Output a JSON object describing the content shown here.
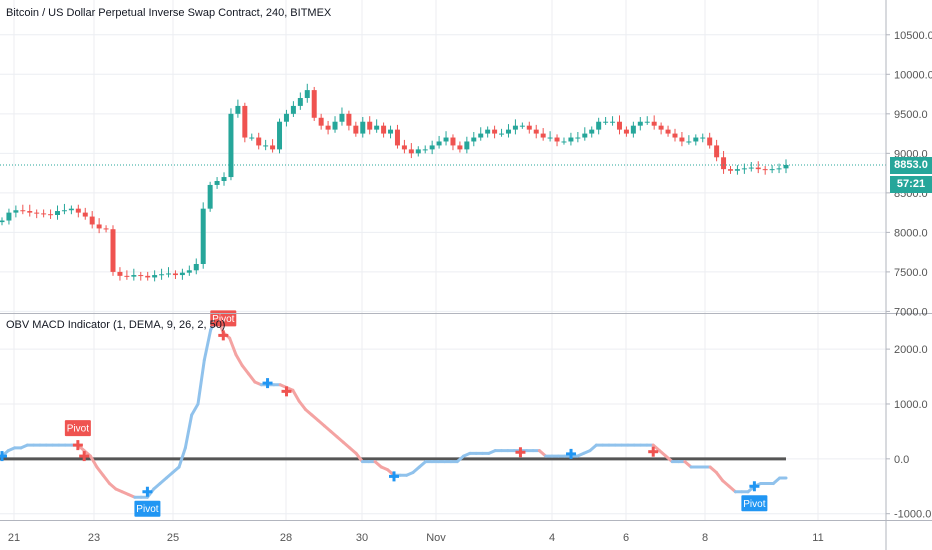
{
  "header": {
    "symbol_title": "Bitcoin / US Dollar Perpetual Inverse Swap Contract, 240, BITMEX",
    "indicator_title": "OBV MACD Indicator (1, DEMA, 9, 26, 2, 50)"
  },
  "price_badges": {
    "last_price": "8853.0",
    "countdown": "57:21",
    "color": "#26a69a"
  },
  "colors": {
    "up": "#26a69a",
    "down": "#ef5350",
    "obv_up": "#90c2ec",
    "obv_down": "#f4a3a2",
    "pivot_up": "#2196f3",
    "pivot_down": "#ef5350",
    "zero_line": "#555555"
  },
  "chart_data": [
    {
      "type": "candlestick",
      "title": "Bitcoin / US Dollar Perpetual Inverse Swap Contract, 240, BITMEX",
      "x_ticks": [
        "21",
        "23",
        "25",
        "28",
        "30",
        "Nov",
        "4",
        "6",
        "8",
        "11"
      ],
      "y_ticks": [
        "10500.0",
        "10000.0",
        "9500.0",
        "9000.0",
        "8500.0",
        "8000.0",
        "7500.0",
        "7000.0"
      ],
      "ylim": [
        6980,
        10940
      ],
      "last_price": 8853.0,
      "series": [
        {
          "name": "BTC",
          "close": [
            8150,
            8250,
            8280,
            8270,
            8250,
            8240,
            8230,
            8220,
            8270,
            8280,
            8300,
            8250,
            8200,
            8100,
            8050,
            8040,
            7500,
            7450,
            7440,
            7460,
            7450,
            7430,
            7460,
            7470,
            7480,
            7460,
            7490,
            7520,
            7600,
            8300,
            8600,
            8650,
            8700,
            9500,
            9600,
            9200,
            9200,
            9100,
            9100,
            9050,
            9400,
            9500,
            9600,
            9700,
            9800,
            9450,
            9350,
            9300,
            9400,
            9500,
            9350,
            9250,
            9400,
            9300,
            9350,
            9250,
            9300,
            9100,
            9050,
            9000,
            9050,
            9050,
            9100,
            9150,
            9200,
            9100,
            9050,
            9150,
            9200,
            9250,
            9300,
            9250,
            9250,
            9300,
            9350,
            9350,
            9300,
            9250,
            9200,
            9200,
            9150,
            9150,
            9200,
            9200,
            9250,
            9300,
            9400,
            9400,
            9400,
            9300,
            9250,
            9350,
            9400,
            9400,
            9350,
            9300,
            9250,
            9200,
            9150,
            9150,
            9200,
            9200,
            9100,
            8950,
            8800,
            8780,
            8800,
            8810,
            8820,
            8800,
            8790,
            8800,
            8810,
            8853
          ]
        }
      ]
    },
    {
      "type": "line",
      "title": "OBV MACD Indicator (1, DEMA, 9, 26, 2, 50)",
      "y_ticks": [
        "2000.0",
        "1000.0",
        "0.0",
        "-1000.0"
      ],
      "ylim": [
        -1115,
        2640
      ],
      "series": [
        {
          "name": "OBV MACD",
          "points": [
            [
              0,
              50
            ],
            [
              1,
              150
            ],
            [
              2,
              200
            ],
            [
              3,
              200
            ],
            [
              4,
              250
            ],
            [
              5,
              250
            ],
            [
              6,
              250
            ],
            [
              7,
              250
            ],
            [
              8,
              250
            ],
            [
              9,
              250
            ],
            [
              10,
              250
            ],
            [
              11,
              250
            ],
            [
              12,
              250
            ],
            [
              13,
              150
            ],
            [
              14,
              50
            ],
            [
              15,
              -150
            ],
            [
              16,
              -300
            ],
            [
              17,
              -450
            ],
            [
              18,
              -550
            ],
            [
              19,
              -600
            ],
            [
              20,
              -650
            ],
            [
              21,
              -700
            ],
            [
              22,
              -700
            ],
            [
              23,
              -700
            ],
            [
              24,
              -550
            ],
            [
              25,
              -450
            ],
            [
              26,
              -350
            ],
            [
              27,
              -250
            ],
            [
              28,
              -150
            ],
            [
              29,
              200
            ],
            [
              30,
              800
            ],
            [
              31,
              1000
            ],
            [
              32,
              1800
            ],
            [
              33,
              2350
            ],
            [
              34,
              2600
            ],
            [
              35,
              2300
            ],
            [
              36,
              2200
            ],
            [
              37,
              1900
            ],
            [
              38,
              1700
            ],
            [
              39,
              1550
            ],
            [
              40,
              1400
            ],
            [
              41,
              1350
            ],
            [
              42,
              1350
            ],
            [
              43,
              1350
            ],
            [
              44,
              1350
            ],
            [
              45,
              1300
            ],
            [
              46,
              1250
            ],
            [
              47,
              1050
            ],
            [
              48,
              900
            ],
            [
              49,
              800
            ],
            [
              50,
              700
            ],
            [
              51,
              600
            ],
            [
              52,
              500
            ],
            [
              53,
              400
            ],
            [
              54,
              300
            ],
            [
              55,
              200
            ],
            [
              56,
              100
            ],
            [
              57,
              -50
            ],
            [
              58,
              -50
            ],
            [
              59,
              -50
            ],
            [
              60,
              -150
            ],
            [
              61,
              -200
            ],
            [
              62,
              -300
            ],
            [
              63,
              -300
            ],
            [
              64,
              -300
            ],
            [
              65,
              -250
            ],
            [
              66,
              -150
            ],
            [
              67,
              -50
            ],
            [
              68,
              -50
            ],
            [
              69,
              -50
            ],
            [
              70,
              -50
            ],
            [
              71,
              -50
            ],
            [
              72,
              -50
            ],
            [
              73,
              50
            ],
            [
              74,
              100
            ],
            [
              75,
              100
            ],
            [
              76,
              100
            ],
            [
              77,
              100
            ],
            [
              78,
              150
            ],
            [
              79,
              150
            ],
            [
              80,
              150
            ],
            [
              81,
              150
            ],
            [
              82,
              150
            ],
            [
              83,
              150
            ],
            [
              84,
              150
            ],
            [
              85,
              150
            ],
            [
              86,
              50
            ],
            [
              87,
              50
            ],
            [
              88,
              50
            ],
            [
              89,
              50
            ],
            [
              90,
              50
            ],
            [
              91,
              50
            ],
            [
              92,
              100
            ],
            [
              93,
              150
            ],
            [
              94,
              250
            ],
            [
              95,
              250
            ],
            [
              96,
              250
            ],
            [
              97,
              250
            ],
            [
              98,
              250
            ],
            [
              99,
              250
            ],
            [
              100,
              250
            ],
            [
              101,
              250
            ],
            [
              102,
              250
            ],
            [
              103,
              250
            ],
            [
              104,
              150
            ],
            [
              105,
              50
            ],
            [
              106,
              -50
            ],
            [
              107,
              -50
            ],
            [
              108,
              -50
            ],
            [
              109,
              -150
            ],
            [
              110,
              -150
            ],
            [
              111,
              -150
            ],
            [
              112,
              -150
            ],
            [
              113,
              -250
            ],
            [
              114,
              -400
            ],
            [
              115,
              -500
            ],
            [
              116,
              -600
            ],
            [
              117,
              -600
            ],
            [
              118,
              -600
            ],
            [
              119,
              -500
            ],
            [
              120,
              -450
            ],
            [
              121,
              -450
            ],
            [
              122,
              -450
            ],
            [
              123,
              -350
            ],
            [
              124,
              -350
            ]
          ],
          "zero_line": 0
        }
      ],
      "pivots": [
        {
          "index": 0,
          "value": 50,
          "direction": "up",
          "label": ""
        },
        {
          "index": 12,
          "value": 250,
          "direction": "down",
          "label": "Pivot"
        },
        {
          "index": 13,
          "value": 50,
          "direction": "down",
          "label": ""
        },
        {
          "index": 23,
          "value": -600,
          "direction": "up",
          "label": "Pivot"
        },
        {
          "index": 35,
          "value": 2250,
          "direction": "down",
          "label": "Pivot"
        },
        {
          "index": 42,
          "value": 1380,
          "direction": "up",
          "label": ""
        },
        {
          "index": 45,
          "value": 1230,
          "direction": "down",
          "label": ""
        },
        {
          "index": 62,
          "value": -320,
          "direction": "up",
          "label": ""
        },
        {
          "index": 82,
          "value": 120,
          "direction": "down",
          "label": ""
        },
        {
          "index": 90,
          "value": 90,
          "direction": "up",
          "label": ""
        },
        {
          "index": 103,
          "value": 130,
          "direction": "down",
          "label": ""
        },
        {
          "index": 119,
          "value": -500,
          "direction": "up",
          "label": "Pivot"
        }
      ]
    }
  ]
}
